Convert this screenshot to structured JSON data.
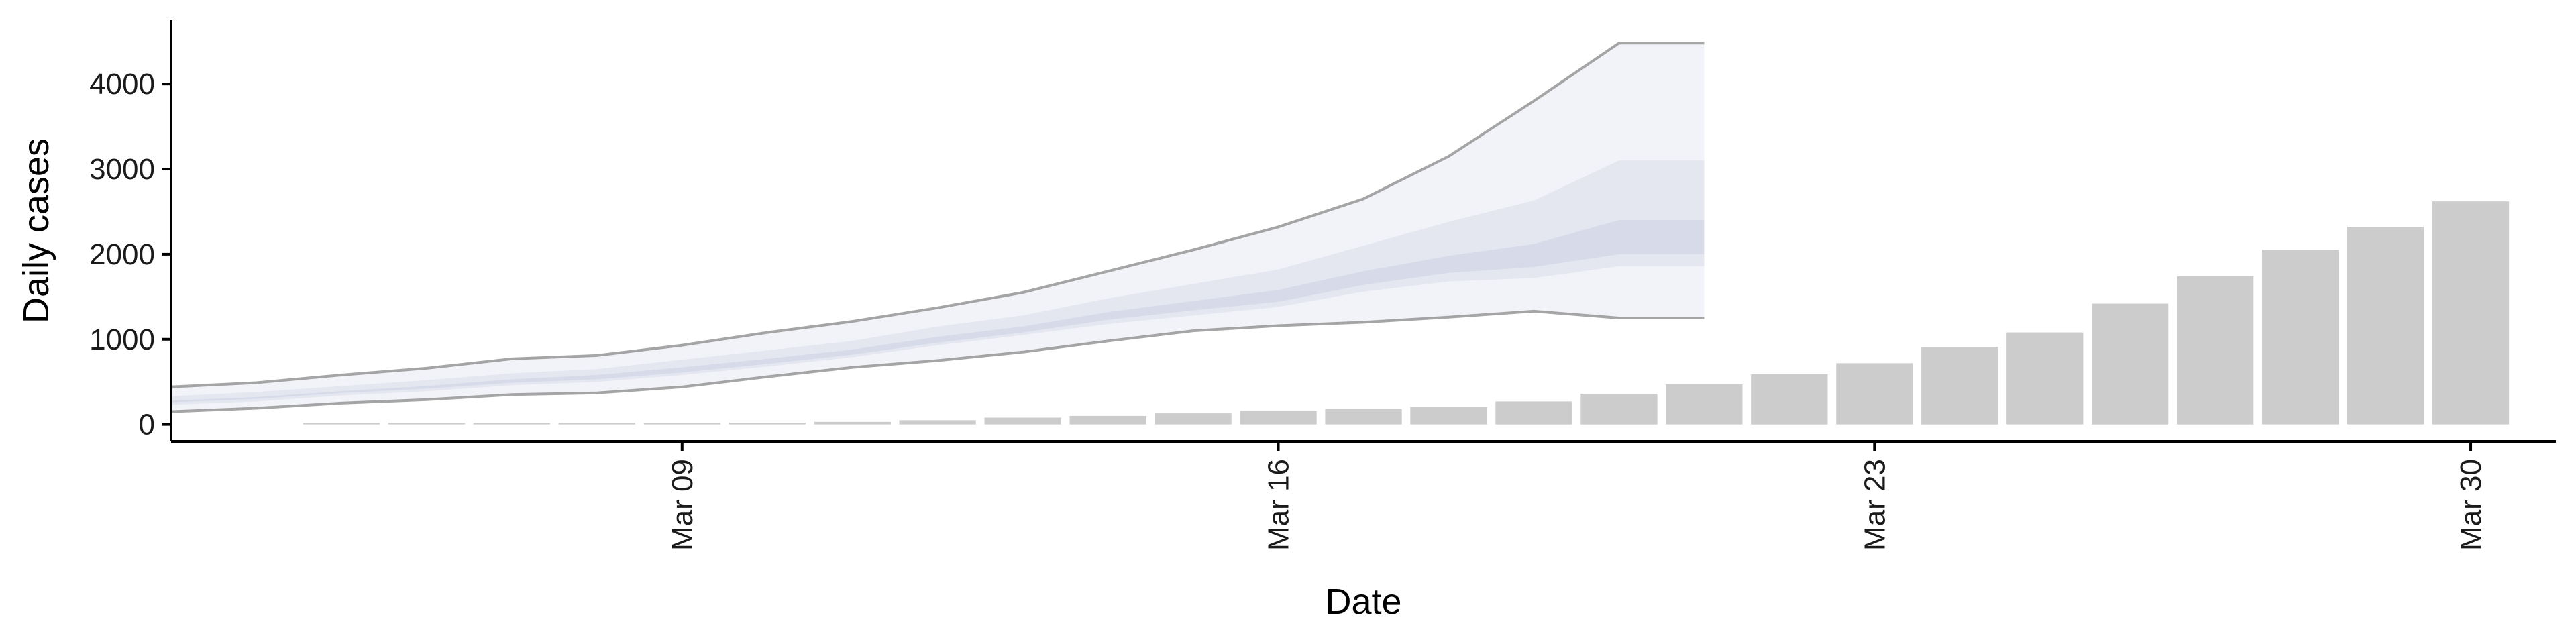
{
  "chart_data": {
    "type": "bar",
    "xlabel": "Date",
    "ylabel": "Daily cases",
    "x_range": [
      "2020-03-03",
      "2020-03-31"
    ],
    "ylim": [
      -200,
      4750
    ],
    "y_ticks": [
      0,
      1000,
      2000,
      3000,
      4000
    ],
    "x_ticks": [
      {
        "date": "2020-03-09",
        "label": "Mar 09"
      },
      {
        "date": "2020-03-16",
        "label": "Mar 16"
      },
      {
        "date": "2020-03-23",
        "label": "Mar 23"
      },
      {
        "date": "2020-03-30",
        "label": "Mar 30"
      }
    ],
    "grid": false,
    "legend": "none",
    "bar_color": "#cccccc",
    "band_color": "#b4bcd6",
    "band_line_color": "#888888",
    "bars": {
      "dates": [
        "2020-03-05",
        "2020-03-06",
        "2020-03-07",
        "2020-03-08",
        "2020-03-09",
        "2020-03-10",
        "2020-03-11",
        "2020-03-12",
        "2020-03-13",
        "2020-03-14",
        "2020-03-15",
        "2020-03-16",
        "2020-03-17",
        "2020-03-18",
        "2020-03-19",
        "2020-03-20",
        "2020-03-21",
        "2020-03-22",
        "2020-03-23",
        "2020-03-24",
        "2020-03-25",
        "2020-03-26",
        "2020-03-27",
        "2020-03-28",
        "2020-03-29",
        "2020-03-30"
      ],
      "values": [
        3,
        5,
        8,
        10,
        15,
        20,
        30,
        50,
        80,
        100,
        130,
        160,
        180,
        210,
        270,
        360,
        470,
        590,
        720,
        910,
        1080,
        1420,
        1740,
        2050,
        2320,
        2620
      ]
    },
    "forecast": {
      "dates": [
        "2020-03-03",
        "2020-03-04",
        "2020-03-05",
        "2020-03-06",
        "2020-03-07",
        "2020-03-08",
        "2020-03-09",
        "2020-03-10",
        "2020-03-11",
        "2020-03-12",
        "2020-03-13",
        "2020-03-14",
        "2020-03-15",
        "2020-03-16",
        "2020-03-17",
        "2020-03-18",
        "2020-03-19",
        "2020-03-20",
        "2020-03-21"
      ],
      "outer_upper": [
        440,
        490,
        580,
        660,
        770,
        810,
        930,
        1080,
        1210,
        1370,
        1550,
        1800,
        2050,
        2320,
        2650,
        3150,
        3800,
        4480,
        4480
      ],
      "outer_lower": [
        150,
        190,
        250,
        290,
        350,
        370,
        440,
        560,
        670,
        750,
        850,
        980,
        1100,
        1160,
        1200,
        1260,
        1330,
        1250,
        1250
      ],
      "mid_upper": [
        330,
        380,
        450,
        520,
        600,
        650,
        760,
        870,
        980,
        1150,
        1280,
        1480,
        1650,
        1820,
        2100,
        2380,
        2630,
        3100,
        3100
      ],
      "mid_lower": [
        230,
        270,
        340,
        390,
        460,
        500,
        580,
        680,
        790,
        930,
        1050,
        1180,
        1280,
        1380,
        1560,
        1680,
        1720,
        1860,
        1860
      ],
      "inner_upper": [
        280,
        320,
        390,
        450,
        530,
        580,
        670,
        770,
        880,
        1030,
        1150,
        1320,
        1450,
        1580,
        1800,
        1980,
        2120,
        2400,
        2400
      ],
      "inner_lower": [
        260,
        300,
        370,
        420,
        490,
        530,
        610,
        710,
        820,
        960,
        1080,
        1230,
        1340,
        1440,
        1640,
        1780,
        1850,
        2000,
        2000
      ]
    }
  }
}
